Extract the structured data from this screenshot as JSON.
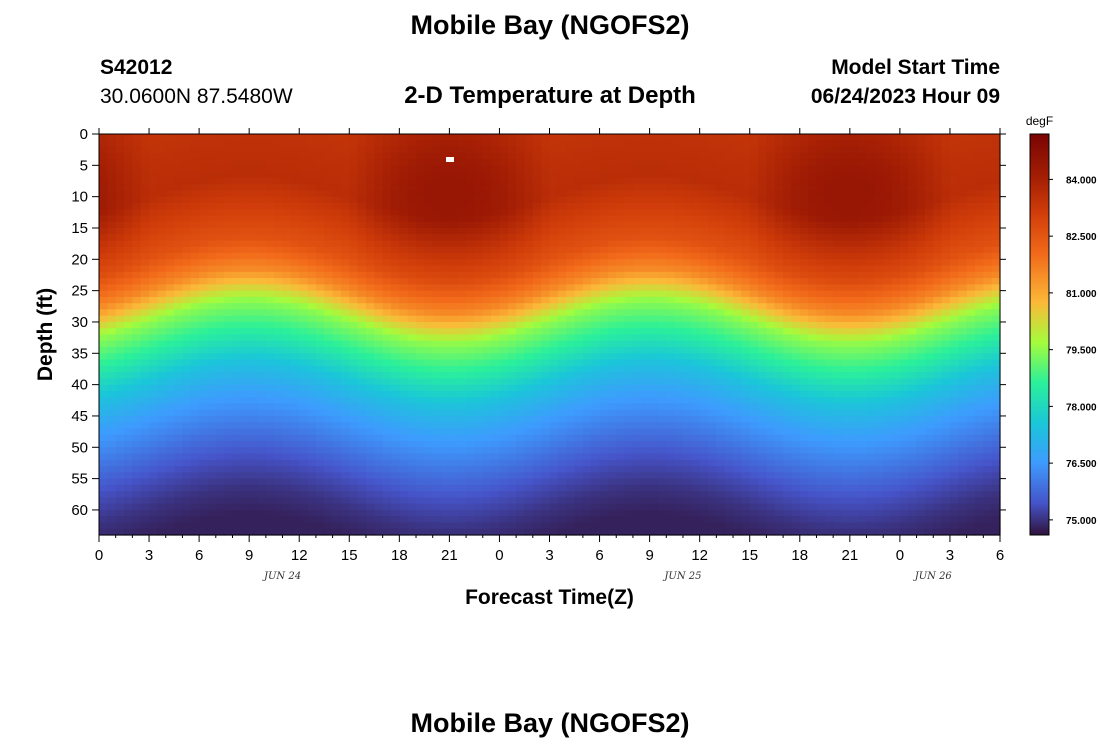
{
  "header": {
    "title": "Mobile Bay (NGOFS2)",
    "station_id": "S42012",
    "coords": "30.0600N  87.5480W",
    "subtitle": "2-D Temperature at Depth",
    "start_label": "Model Start Time",
    "start_value": "06/24/2023 Hour 09"
  },
  "footer": {
    "title": "Mobile Bay (NGOFS2)"
  },
  "chart_data": {
    "type": "heatmap",
    "title": "2-D Temperature at Depth",
    "xlabel": "Forecast Time(Z)",
    "ylabel": "Depth (ft)",
    "x_tick_labels": [
      "0",
      "3",
      "6",
      "9",
      "12",
      "15",
      "18",
      "21",
      "0",
      "3",
      "6",
      "9",
      "12",
      "15",
      "18",
      "21",
      "0",
      "3",
      "6"
    ],
    "x_range_hours": [
      0,
      54
    ],
    "date_labels": [
      {
        "label": "JUN 24",
        "hour": 11
      },
      {
        "label": "JUN 25",
        "hour": 35
      },
      {
        "label": "JUN 26",
        "hour": 50
      }
    ],
    "y_ticks": [
      0,
      5,
      10,
      15,
      20,
      25,
      30,
      35,
      40,
      45,
      50,
      55,
      60
    ],
    "y_range": [
      0,
      64
    ],
    "y_inverted": true,
    "colorbar": {
      "unit": "degF",
      "ticks": [
        "84.000",
        "82.500",
        "81.000",
        "79.500",
        "78.000",
        "76.500",
        "75.000"
      ],
      "tick_values": [
        84.0,
        82.5,
        81.0,
        79.5,
        78.0,
        76.5,
        75.0
      ],
      "range": [
        74.6,
        85.2
      ]
    },
    "approx_profile": [
      {
        "depth_ft": 0,
        "temp_f": 83.4
      },
      {
        "depth_ft": 10,
        "temp_f": 83.6
      },
      {
        "depth_ft": 20,
        "temp_f": 82.6
      },
      {
        "depth_ft": 25,
        "temp_f": 81.5
      },
      {
        "depth_ft": 30,
        "temp_f": 79.5
      },
      {
        "depth_ft": 35,
        "temp_f": 78.5
      },
      {
        "depth_ft": 40,
        "temp_f": 77.4
      },
      {
        "depth_ft": 45,
        "temp_f": 76.6
      },
      {
        "depth_ft": 50,
        "temp_f": 76.0
      },
      {
        "depth_ft": 55,
        "temp_f": 75.4
      },
      {
        "depth_ft": 60,
        "temp_f": 75.0
      },
      {
        "depth_ft": 64,
        "temp_f": 74.8
      }
    ]
  }
}
